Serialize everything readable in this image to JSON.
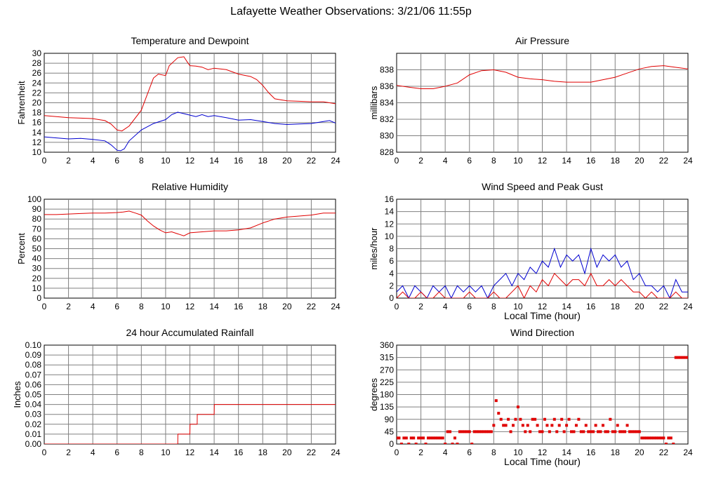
{
  "page_title": "Lafayette Weather Observations: 3/21/06 11:55p",
  "colors": {
    "red": "#e00000",
    "blue": "#0000d0",
    "grid": "#808080"
  },
  "chart_data": [
    {
      "id": "temperature",
      "type": "line",
      "title": "Temperature and Dewpoint",
      "xlabel": "",
      "ylabel": "Fahrenheit",
      "xlim": [
        0,
        24
      ],
      "ylim": [
        10,
        30
      ],
      "xticks": [
        0,
        2,
        4,
        6,
        8,
        10,
        12,
        14,
        16,
        18,
        20,
        22,
        24
      ],
      "yticks": [
        10,
        12,
        14,
        16,
        18,
        20,
        22,
        24,
        26,
        28,
        30
      ],
      "grid": true,
      "series": [
        {
          "color": "#e00000",
          "x": [
            0,
            1,
            2,
            3,
            4,
            5,
            5.5,
            6,
            6.4,
            7,
            8,
            9,
            9.4,
            10,
            10.3,
            11,
            11.5,
            11.8,
            12,
            12.5,
            13,
            13.5,
            14,
            15,
            16,
            17,
            17.5,
            18,
            18.5,
            19,
            20,
            21,
            22,
            23,
            24
          ],
          "y": [
            17.4,
            17.2,
            17,
            16.9,
            16.8,
            16.4,
            15.7,
            14.5,
            14.3,
            15.3,
            18.5,
            25,
            25.8,
            25.5,
            27.5,
            29.1,
            29.3,
            28.2,
            27.5,
            27.4,
            27.2,
            26.7,
            27,
            26.7,
            25.8,
            25.3,
            24.7,
            23.5,
            22,
            20.8,
            20.4,
            20.3,
            20.2,
            20.2,
            19.8
          ]
        },
        {
          "color": "#0000d0",
          "x": [
            0,
            1,
            2,
            3,
            4,
            5,
            5.5,
            6,
            6.3,
            6.6,
            7,
            8,
            9,
            10,
            10.5,
            11,
            11.5,
            12,
            12.5,
            13,
            13.5,
            14,
            15,
            16,
            17,
            18,
            19,
            20,
            21,
            22,
            23,
            23.5,
            24
          ],
          "y": [
            13.1,
            12.9,
            12.7,
            12.8,
            12.6,
            12.3,
            11.5,
            10.4,
            10.3,
            10.7,
            12.3,
            14.5,
            15.8,
            16.6,
            17.6,
            18.1,
            17.8,
            17.5,
            17.2,
            17.6,
            17.2,
            17.4,
            17,
            16.5,
            16.6,
            16.2,
            15.8,
            15.6,
            15.7,
            15.8,
            16.2,
            16.4,
            15.9
          ]
        }
      ]
    },
    {
      "id": "pressure",
      "type": "line",
      "title": "Air Pressure",
      "xlabel": "",
      "ylabel": "millibars",
      "xlim": [
        0,
        24
      ],
      "ylim": [
        828,
        840
      ],
      "xticks": [
        0,
        2,
        4,
        6,
        8,
        10,
        12,
        14,
        16,
        18,
        20,
        22,
        24
      ],
      "yticks": [
        828,
        830,
        832,
        834,
        836,
        838
      ],
      "grid": true,
      "series": [
        {
          "color": "#e00000",
          "x": [
            0,
            1,
            2,
            3,
            4,
            5,
            6,
            7,
            8,
            9,
            10,
            11,
            12,
            13,
            14,
            15,
            16,
            17,
            18,
            19,
            20,
            21,
            22,
            23,
            24
          ],
          "y": [
            836.1,
            835.9,
            835.7,
            835.7,
            836.0,
            836.4,
            837.4,
            837.9,
            838.0,
            837.7,
            837.1,
            836.9,
            836.8,
            836.6,
            836.5,
            836.5,
            836.5,
            836.8,
            837.1,
            837.6,
            838.1,
            838.4,
            838.5,
            838.3,
            838.1
          ]
        }
      ]
    },
    {
      "id": "humidity",
      "type": "line",
      "title": "Relative Humidity",
      "xlabel": "",
      "ylabel": "Percent",
      "xlim": [
        0,
        24
      ],
      "ylim": [
        0,
        100
      ],
      "xticks": [
        0,
        2,
        4,
        6,
        8,
        10,
        12,
        14,
        16,
        18,
        20,
        22,
        24
      ],
      "yticks": [
        0,
        10,
        20,
        30,
        40,
        50,
        60,
        70,
        80,
        90,
        100
      ],
      "grid": true,
      "series": [
        {
          "color": "#e00000",
          "x": [
            0,
            1,
            2,
            3,
            4,
            5,
            6,
            6.5,
            7,
            7.5,
            8,
            8.5,
            9,
            9.5,
            10,
            10.5,
            11,
            11.5,
            12,
            13,
            14,
            15,
            16,
            17,
            18,
            19,
            20,
            21,
            22,
            23,
            24
          ],
          "y": [
            84.5,
            84.5,
            85,
            85.5,
            86,
            86,
            86.5,
            87,
            88,
            86,
            84,
            78,
            73,
            69,
            66,
            67,
            65,
            63,
            66,
            67,
            68,
            68,
            69,
            71,
            76,
            80,
            82,
            83,
            84,
            86,
            86
          ]
        }
      ]
    },
    {
      "id": "wind-speed",
      "type": "line",
      "title": "Wind Speed and Peak Gust",
      "xlabel": "Local Time (hour)",
      "ylabel": "miles/hour",
      "xlim": [
        0,
        24
      ],
      "ylim": [
        0,
        16
      ],
      "xticks": [
        0,
        2,
        4,
        6,
        8,
        10,
        12,
        14,
        16,
        18,
        20,
        22,
        24
      ],
      "yticks": [
        0,
        2,
        4,
        6,
        8,
        10,
        12,
        14,
        16
      ],
      "grid": true,
      "series": [
        {
          "color": "#0000d0",
          "x": [
            0,
            0.5,
            1,
            1.5,
            2,
            2.5,
            3,
            3.5,
            4,
            4.5,
            5,
            5.5,
            6,
            6.5,
            7,
            7.5,
            8,
            8.5,
            9,
            9.5,
            10,
            10.5,
            11,
            11.5,
            12,
            12.5,
            13,
            13.5,
            14,
            14.5,
            15,
            15.5,
            16,
            16.5,
            17,
            17.5,
            18,
            18.5,
            19,
            19.5,
            20,
            20.5,
            21,
            21.5,
            22,
            22.5,
            23,
            23.5,
            24
          ],
          "y": [
            1,
            2,
            0,
            2,
            1,
            0,
            2,
            1,
            2,
            0,
            2,
            1,
            2,
            1,
            2,
            0,
            2,
            3,
            4,
            2,
            4,
            3,
            5,
            4,
            6,
            5,
            8,
            5,
            7,
            6,
            7,
            4,
            8,
            5,
            7,
            6,
            7,
            5,
            6,
            3,
            4,
            2,
            2,
            1,
            2,
            0,
            3,
            1,
            1
          ]
        },
        {
          "color": "#e00000",
          "x": [
            0,
            0.5,
            1,
            1.5,
            2,
            2.5,
            3,
            3.5,
            4,
            4.5,
            5,
            5.5,
            6,
            6.5,
            7,
            7.5,
            8,
            8.5,
            9,
            9.5,
            10,
            10.5,
            11,
            11.5,
            12,
            12.5,
            13,
            13.5,
            14,
            14.5,
            15,
            15.5,
            16,
            16.5,
            17,
            17.5,
            18,
            18.5,
            19,
            19.5,
            20,
            20.5,
            21,
            21.5,
            22,
            22.5,
            23,
            23.5,
            24
          ],
          "y": [
            0,
            1,
            0,
            0,
            1,
            0,
            0,
            1,
            0,
            0,
            0,
            0,
            1,
            0,
            0,
            0,
            1,
            0,
            0,
            1,
            2,
            0,
            2,
            1,
            3,
            2,
            4,
            3,
            2,
            3,
            3,
            2,
            4,
            2,
            2,
            3,
            2,
            3,
            2,
            1,
            1,
            0,
            1,
            0,
            0,
            0,
            1,
            0,
            0
          ]
        }
      ]
    },
    {
      "id": "rainfall",
      "type": "line",
      "title": "24 hour Accumulated Rainfall",
      "xlabel": "",
      "ylabel": "Inches",
      "xlim": [
        0,
        24
      ],
      "ylim": [
        0,
        0.1
      ],
      "xticks": [
        0,
        2,
        4,
        6,
        8,
        10,
        12,
        14,
        16,
        18,
        20,
        22,
        24
      ],
      "yticks": [
        "0.00",
        "0.01",
        "0.02",
        "0.03",
        "0.04",
        "0.05",
        "0.06",
        "0.07",
        "0.08",
        "0.09",
        "0.10"
      ],
      "grid": true,
      "series": [
        {
          "color": "#e00000",
          "x": [
            0,
            11,
            11.01,
            12,
            12.01,
            12.6,
            12.61,
            14,
            14.01,
            24
          ],
          "y": [
            0,
            0,
            0.01,
            0.01,
            0.02,
            0.02,
            0.03,
            0.03,
            0.04,
            0.04
          ]
        }
      ]
    },
    {
      "id": "wind-direction",
      "type": "scatter",
      "title": "Wind Direction",
      "xlabel": "Local Time (hour)",
      "ylabel": "degrees",
      "xlim": [
        0,
        24
      ],
      "ylim": [
        0,
        360
      ],
      "xticks": [
        0,
        2,
        4,
        6,
        8,
        10,
        12,
        14,
        16,
        18,
        20,
        22,
        24
      ],
      "yticks": [
        0,
        45,
        90,
        135,
        180,
        225,
        270,
        315,
        360
      ],
      "grid": true,
      "series": [
        {
          "color": "#e00000",
          "x": [
            0,
            0.2,
            0.4,
            0.6,
            0.8,
            1,
            1.2,
            1.4,
            1.6,
            1.8,
            2,
            2.2,
            2.4,
            2.6,
            2.8,
            3,
            3.2,
            3.4,
            3.6,
            3.8,
            4,
            4.2,
            4.4,
            4.6,
            4.8,
            5,
            5.2,
            5.4,
            5.6,
            5.8,
            6,
            6.2,
            6.4,
            6.6,
            6.8,
            7,
            7.2,
            7.4,
            7.6,
            7.8,
            8,
            8.2,
            8.4,
            8.6,
            8.8,
            9,
            9.2,
            9.4,
            9.6,
            9.8,
            10,
            10.2,
            10.4,
            10.6,
            10.8,
            11,
            11.2,
            11.4,
            11.6,
            11.8,
            12,
            12.2,
            12.4,
            12.6,
            12.8,
            13,
            13.2,
            13.4,
            13.6,
            13.8,
            14,
            14.2,
            14.4,
            14.6,
            14.8,
            15,
            15.2,
            15.4,
            15.6,
            15.8,
            16,
            16.2,
            16.4,
            16.6,
            16.8,
            17,
            17.2,
            17.4,
            17.6,
            17.8,
            18,
            18.2,
            18.4,
            18.6,
            18.8,
            19,
            19.2,
            19.4,
            19.6,
            19.8,
            20,
            20.2,
            20.4,
            20.6,
            20.8,
            21,
            21.2,
            21.4,
            21.6,
            21.8,
            22,
            22.2,
            22.4,
            22.6,
            22.8,
            23,
            23.2,
            23.4,
            23.6,
            23.8,
            24
          ],
          "y": [
            22,
            22,
            0,
            22,
            22,
            0,
            22,
            22,
            0,
            22,
            22,
            22,
            0,
            22,
            22,
            22,
            22,
            22,
            22,
            22,
            0,
            45,
            45,
            0,
            22,
            0,
            45,
            45,
            45,
            45,
            45,
            0,
            45,
            45,
            45,
            45,
            45,
            45,
            45,
            45,
            68,
            158,
            112,
            90,
            68,
            68,
            90,
            45,
            68,
            90,
            135,
            90,
            68,
            45,
            68,
            45,
            90,
            90,
            68,
            45,
            45,
            90,
            68,
            45,
            68,
            90,
            45,
            68,
            90,
            45,
            68,
            90,
            45,
            45,
            68,
            90,
            45,
            45,
            68,
            45,
            45,
            45,
            68,
            45,
            45,
            68,
            45,
            45,
            90,
            45,
            45,
            68,
            45,
            45,
            45,
            68,
            45,
            45,
            45,
            45,
            45,
            22,
            22,
            22,
            22,
            22,
            22,
            22,
            22,
            22,
            22,
            0,
            22,
            22,
            0,
            315,
            315,
            315,
            315,
            315,
            315
          ]
        }
      ]
    }
  ]
}
